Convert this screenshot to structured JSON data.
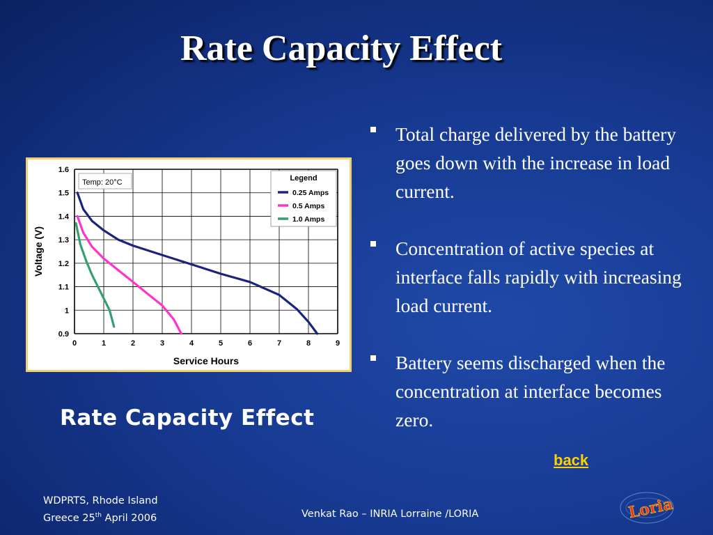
{
  "slide": {
    "title": "Rate Capacity Effect",
    "caption": "Rate Capacity Effect",
    "bullets": [
      "Total charge delivered by the battery goes down with the increase in load current.",
      "Concentration of active species at interface falls rapidly with increasing load current.",
      "Battery seems discharged when the concentration at interface becomes zero."
    ],
    "back_link": "back",
    "footer": {
      "line1": "WDPRTS, Rhode Island",
      "line2_pre": "Greece 25",
      "line2_sup": "th",
      "line2_post": " April 2006",
      "center": "Venkat Rao – INRIA Lorraine /LORIA"
    },
    "logo_text": "Loria"
  },
  "chart_data": {
    "type": "line",
    "title": "",
    "annotation": "Temp: 20°C",
    "xlabel": "Service Hours",
    "ylabel": "Voltage (V)",
    "xlim": [
      0,
      9
    ],
    "ylim": [
      0.9,
      1.6
    ],
    "xticks": [
      "0",
      "1",
      "2",
      "3",
      "4",
      "5",
      "6",
      "7",
      "8",
      "9"
    ],
    "yticks": [
      "0.9",
      "1",
      "1.1",
      "1.2",
      "1.3",
      "1.4",
      "1.5",
      "1.6"
    ],
    "grid": true,
    "legend": {
      "title": "Legend",
      "placement": "top-right"
    },
    "series": [
      {
        "name": "0.25 Amps",
        "color": "#1a237e",
        "x": [
          0.1,
          0.3,
          0.6,
          1.0,
          1.5,
          2.0,
          3.0,
          4.0,
          5.0,
          6.0,
          7.0,
          7.6,
          8.0,
          8.3
        ],
        "y": [
          1.5,
          1.43,
          1.38,
          1.34,
          1.3,
          1.275,
          1.235,
          1.195,
          1.155,
          1.12,
          1.065,
          1.005,
          0.95,
          0.9
        ]
      },
      {
        "name": "0.5 Amps",
        "color": "#ff33cc",
        "x": [
          0.1,
          0.3,
          0.6,
          1.0,
          1.5,
          2.0,
          2.5,
          3.0,
          3.4,
          3.65
        ],
        "y": [
          1.4,
          1.33,
          1.27,
          1.22,
          1.17,
          1.12,
          1.07,
          1.02,
          0.96,
          0.9
        ]
      },
      {
        "name": "1.0 Amps",
        "color": "#33a070",
        "x": [
          0.05,
          0.2,
          0.4,
          0.6,
          0.8,
          1.0,
          1.2,
          1.35
        ],
        "y": [
          1.37,
          1.28,
          1.21,
          1.15,
          1.1,
          1.05,
          1.0,
          0.93
        ]
      }
    ]
  }
}
